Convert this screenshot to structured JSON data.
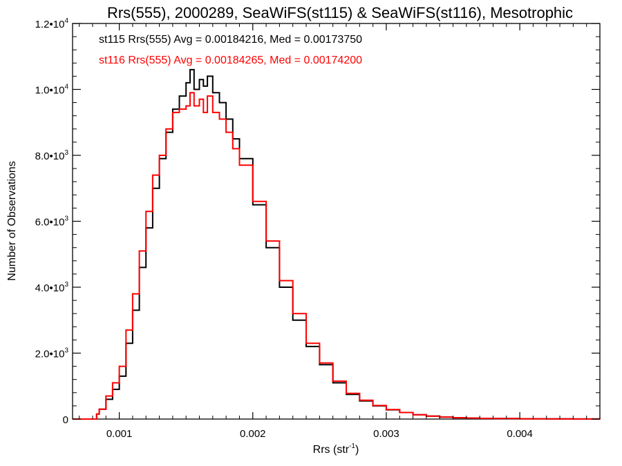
{
  "chart_data": {
    "type": "histogram-step",
    "title": "Rrs(555), 2000289, SeaWiFS(st115) & SeaWiFS(st116), Mesotrophic",
    "xlabel": "Rrs (str",
    "xlabel_sup": "-1",
    "xlabel_end": ")",
    "ylabel": "Number of Observations",
    "xlim": [
      0.00065,
      0.0046
    ],
    "ylim": [
      0,
      12000
    ],
    "x_ticks": [
      {
        "value": 0.001,
        "label": "0.001"
      },
      {
        "value": 0.002,
        "label": "0.002"
      },
      {
        "value": 0.003,
        "label": "0.003"
      },
      {
        "value": 0.004,
        "label": "0.004"
      }
    ],
    "y_ticks": [
      {
        "value": 0,
        "label": "0",
        "sup": ""
      },
      {
        "value": 2000,
        "label": "2.0•10",
        "sup": "3"
      },
      {
        "value": 4000,
        "label": "4.0•10",
        "sup": "3"
      },
      {
        "value": 6000,
        "label": "6.0•10",
        "sup": "3"
      },
      {
        "value": 8000,
        "label": "8.0•10",
        "sup": "3"
      },
      {
        "value": 10000,
        "label": "1.0•10",
        "sup": "4"
      },
      {
        "value": 12000,
        "label": "1.2•10",
        "sup": "4"
      }
    ],
    "annotations": [
      {
        "text": "st115 Rrs(555) Avg = 0.00184216, Med = 0.00173750",
        "color": "#000000"
      },
      {
        "text": "st116 Rrs(555) Avg = 0.00184265, Med = 0.00174200",
        "color": "#ff0000"
      }
    ],
    "series": [
      {
        "color": "#000000",
        "x": [
          0.00065,
          0.0008,
          0.00083,
          0.00085,
          0.0009,
          0.00095,
          0.001,
          0.00105,
          0.0011,
          0.00115,
          0.0012,
          0.00125,
          0.0013,
          0.00135,
          0.0014,
          0.00145,
          0.0015,
          0.00153,
          0.00156,
          0.0016,
          0.00163,
          0.00166,
          0.0017,
          0.00175,
          0.0018,
          0.00185,
          0.0019,
          0.002,
          0.0021,
          0.0022,
          0.0023,
          0.0024,
          0.0025,
          0.0026,
          0.0027,
          0.0028,
          0.0029,
          0.003,
          0.0031,
          0.0032,
          0.0033,
          0.0034,
          0.0035,
          0.0036,
          0.0037,
          0.0038,
          0.004,
          0.0042,
          0.0044,
          0.0046
        ],
        "y": [
          0,
          0,
          150,
          300,
          600,
          900,
          1300,
          2300,
          3300,
          4600,
          5800,
          7000,
          7900,
          8700,
          9400,
          9800,
          10200,
          10600,
          10000,
          10300,
          10100,
          10400,
          9900,
          9600,
          9100,
          8500,
          7900,
          6500,
          5200,
          4000,
          3000,
          2200,
          1650,
          1100,
          750,
          550,
          400,
          280,
          200,
          130,
          90,
          60,
          40,
          30,
          20,
          15,
          8,
          5,
          3,
          0
        ]
      },
      {
        "color": "#ff0000",
        "x": [
          0.00065,
          0.0008,
          0.00083,
          0.00085,
          0.0009,
          0.00095,
          0.001,
          0.00105,
          0.0011,
          0.00115,
          0.0012,
          0.00125,
          0.0013,
          0.00135,
          0.0014,
          0.00145,
          0.0015,
          0.00153,
          0.00156,
          0.0016,
          0.00163,
          0.00166,
          0.0017,
          0.00175,
          0.0018,
          0.00185,
          0.0019,
          0.002,
          0.0021,
          0.0022,
          0.0023,
          0.0024,
          0.0025,
          0.0026,
          0.0027,
          0.0028,
          0.0029,
          0.003,
          0.0031,
          0.0032,
          0.0033,
          0.0034,
          0.0035,
          0.0036,
          0.0037,
          0.0038,
          0.004,
          0.0042,
          0.0044,
          0.0046
        ],
        "y": [
          0,
          0,
          150,
          300,
          700,
          1100,
          1600,
          2700,
          3800,
          5100,
          6300,
          7400,
          8000,
          8800,
          9300,
          9400,
          9500,
          9900,
          9500,
          9700,
          9300,
          9800,
          9300,
          9100,
          8700,
          8200,
          7700,
          6600,
          5400,
          4200,
          3200,
          2300,
          1700,
          1150,
          780,
          570,
          410,
          290,
          200,
          130,
          90,
          60,
          40,
          30,
          20,
          15,
          8,
          5,
          3,
          0
        ]
      }
    ]
  }
}
